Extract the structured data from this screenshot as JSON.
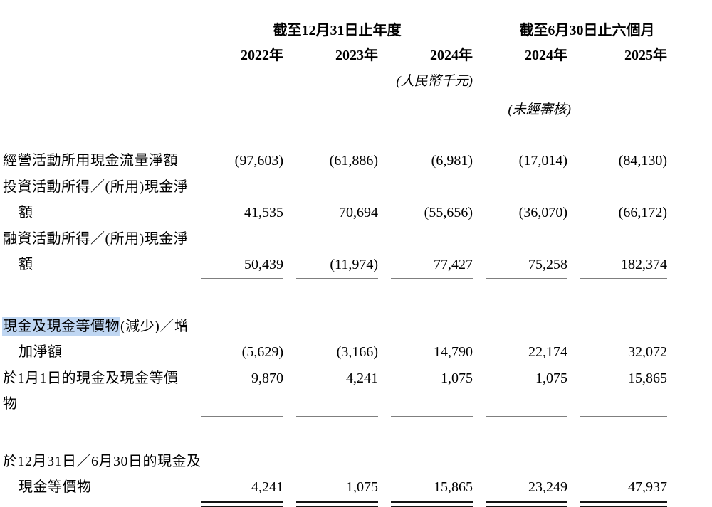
{
  "table": {
    "header": {
      "annual_period": "截至12月31日止年度",
      "interim_period": "截至6月30日止六個月",
      "years": [
        "2022年",
        "2023年",
        "2024年",
        "2024年",
        "2025年"
      ],
      "currency_note": "(人民幣千元)",
      "unaudited_note": "(未經審核)"
    },
    "rows": [
      {
        "label": "經營活動所用現金流量淨額",
        "values": [
          "(97,603)",
          "(61,886)",
          "(6,981)",
          "(17,014)",
          "(84,130)"
        ]
      },
      {
        "label_line1": "投資活動所得／(所用)現金淨",
        "label_line2": "額",
        "values": [
          "41,535",
          "70,694",
          "(55,656)",
          "(36,070)",
          "(66,172)"
        ]
      },
      {
        "label_line1": "融資活動所得／(所用)現金淨",
        "label_line2": "額",
        "values": [
          "50,439",
          "(11,974)",
          "77,427",
          "75,258",
          "182,374"
        ]
      },
      {
        "label_highlighted": "現金及現金等價物",
        "label_line1_rest": "(減少)／增",
        "label_line2": "加淨額",
        "values": [
          "(5,629)",
          "(3,166)",
          "14,790",
          "22,174",
          "32,072"
        ]
      },
      {
        "label": "於1月1日的現金及現金等價物",
        "values": [
          "9,870",
          "4,241",
          "1,075",
          "1,075",
          "15,865"
        ]
      },
      {
        "label_line1": "於12月31日／6月30日的現金及",
        "label_line2": "現金等價物",
        "values": [
          "4,241",
          "1,075",
          "15,865",
          "23,249",
          "47,937"
        ]
      }
    ],
    "colors": {
      "highlight": "#bfd6f2",
      "single_rule": "#7f7f7f",
      "double_rule": "#141414",
      "text": "#000000"
    }
  }
}
